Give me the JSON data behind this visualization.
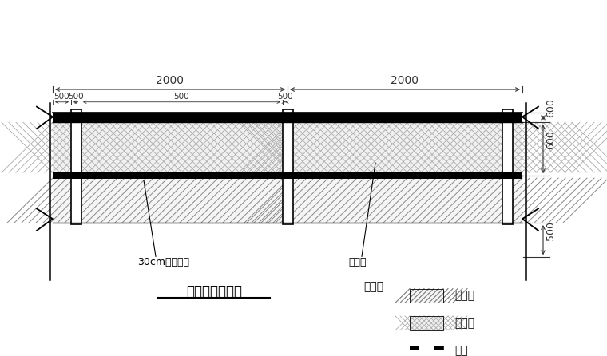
{
  "bg_color": "#ffffff",
  "line_color": "#000000",
  "dim_color": "#333333",
  "title": "防护栏杆立面图",
  "label_tijiao": "30cm高踢脚板",
  "label_miwang": "密目网",
  "legend_title": "图例：",
  "legend_tijiao": "踢脚板",
  "legend_miwang": "密目网",
  "legend_liguan": "立杆",
  "dim_2000_left": "2000",
  "dim_2000_right": "2000",
  "dim_500s": [
    "500",
    "500",
    "500",
    "500"
  ],
  "dim_600_top": "600",
  "dim_600_mid": "600",
  "dim_500_bot": "500"
}
